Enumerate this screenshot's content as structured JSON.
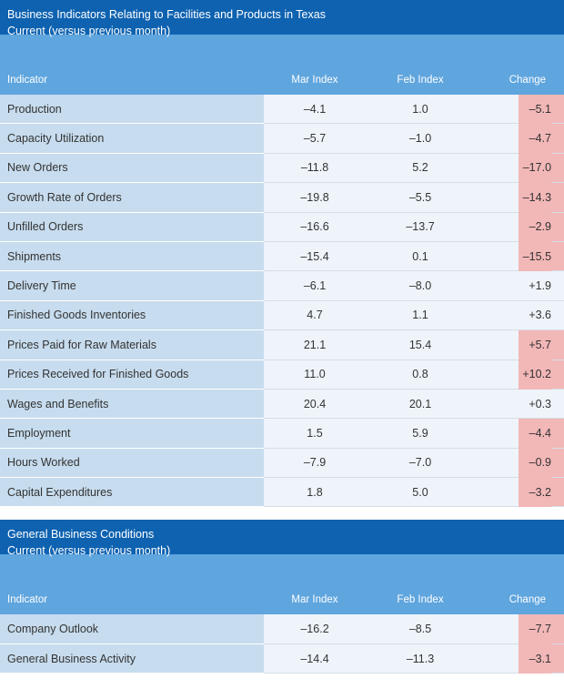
{
  "section1": {
    "title": "Business Indicators Relating to Facilities and Products in Texas",
    "subtitle": "Current (versus previous month)",
    "headers": {
      "indicator": "Indicator",
      "mar": "Mar Index",
      "feb": "Feb Index",
      "change": "Change"
    },
    "rows": [
      {
        "label": "Production",
        "mar": "–4.1",
        "feb": "1.0",
        "change": "–5.1",
        "highlight": true
      },
      {
        "label": "Capacity Utilization",
        "mar": "–5.7",
        "feb": "–1.0",
        "change": "–4.7",
        "highlight": true
      },
      {
        "label": "New Orders",
        "mar": "–11.8",
        "feb": "5.2",
        "change": "–17.0",
        "highlight": true
      },
      {
        "label": "Growth Rate of Orders",
        "mar": "–19.8",
        "feb": "–5.5",
        "change": "–14.3",
        "highlight": true
      },
      {
        "label": "Unfilled Orders",
        "mar": "–16.6",
        "feb": "–13.7",
        "change": "–2.9",
        "highlight": true
      },
      {
        "label": "Shipments",
        "mar": "–15.4",
        "feb": "0.1",
        "change": "–15.5",
        "highlight": true
      },
      {
        "label": "Delivery Time",
        "mar": "–6.1",
        "feb": "–8.0",
        "change": "+1.9",
        "highlight": false
      },
      {
        "label": "Finished Goods Inventories",
        "mar": "4.7",
        "feb": "1.1",
        "change": "+3.6",
        "highlight": false
      },
      {
        "label": "Prices Paid for Raw Materials",
        "mar": "21.1",
        "feb": "15.4",
        "change": "+5.7",
        "highlight": true
      },
      {
        "label": "Prices Received for Finished Goods",
        "mar": "11.0",
        "feb": "0.8",
        "change": "+10.2",
        "highlight": true
      },
      {
        "label": "Wages and Benefits",
        "mar": "20.4",
        "feb": "20.1",
        "change": "+0.3",
        "highlight": false
      },
      {
        "label": "Employment",
        "mar": "1.5",
        "feb": "5.9",
        "change": "–4.4",
        "highlight": true
      },
      {
        "label": "Hours Worked",
        "mar": "–7.9",
        "feb": "–7.0",
        "change": "–0.9",
        "highlight": true
      },
      {
        "label": "Capital Expenditures",
        "mar": "1.8",
        "feb": "5.0",
        "change": "–3.2",
        "highlight": true
      }
    ]
  },
  "section2": {
    "title": "General Business Conditions",
    "subtitle": "Current (versus previous month)",
    "headers": {
      "indicator": "Indicator",
      "mar": "Mar Index",
      "feb": "Feb Index",
      "change": "Change"
    },
    "rows": [
      {
        "label": "Company Outlook",
        "mar": "–16.2",
        "feb": "–8.5",
        "change": "–7.7",
        "highlight": true
      },
      {
        "label": "General Business Activity",
        "mar": "–14.4",
        "feb": "–11.3",
        "change": "–3.1",
        "highlight": true
      }
    ]
  },
  "colors": {
    "title_bar": "#0e62b0",
    "header_bar": "#5fa5de",
    "indicator_cell": "#c7dcee",
    "value_cell": "#eef4fa",
    "change_highlight": "#f2b7b7"
  }
}
